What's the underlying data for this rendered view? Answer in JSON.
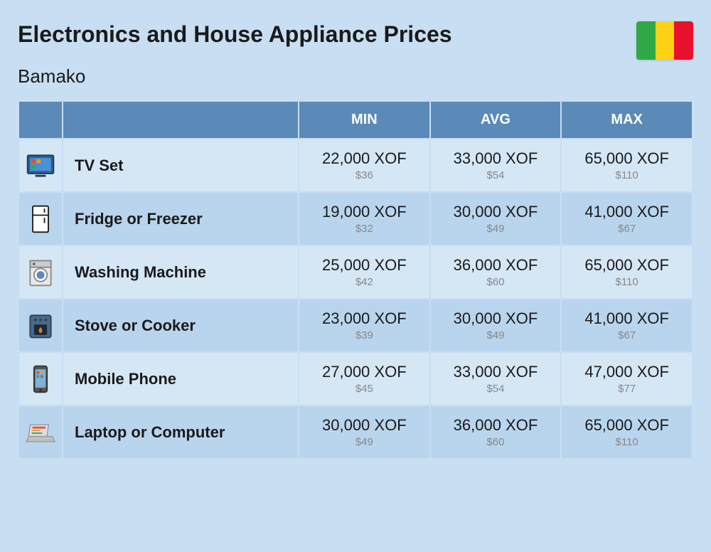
{
  "header": {
    "title": "Electronics and House Appliance Prices",
    "subtitle": "Bamako",
    "flag_colors": [
      "#2fa845",
      "#fcd116",
      "#e8112d"
    ]
  },
  "columns": {
    "min": "MIN",
    "avg": "AVG",
    "max": "MAX"
  },
  "styling": {
    "background_color": "#c8dff3",
    "header_bg": "#5b8ab8",
    "header_text": "#ffffff",
    "row_even_bg": "#d5e6f5",
    "row_odd_bg": "#b9d4ed",
    "title_fontsize": 32,
    "subtitle_fontsize": 26,
    "price_main_fontsize": 22,
    "price_sub_fontsize": 15,
    "price_sub_color": "#888888"
  },
  "rows": [
    {
      "icon": "tv-icon",
      "name": "TV Set",
      "min": {
        "xof": "22,000 XOF",
        "usd": "$36"
      },
      "avg": {
        "xof": "33,000 XOF",
        "usd": "$54"
      },
      "max": {
        "xof": "65,000 XOF",
        "usd": "$110"
      }
    },
    {
      "icon": "fridge-icon",
      "name": "Fridge or Freezer",
      "min": {
        "xof": "19,000 XOF",
        "usd": "$32"
      },
      "avg": {
        "xof": "30,000 XOF",
        "usd": "$49"
      },
      "max": {
        "xof": "41,000 XOF",
        "usd": "$67"
      }
    },
    {
      "icon": "washer-icon",
      "name": "Washing Machine",
      "min": {
        "xof": "25,000 XOF",
        "usd": "$42"
      },
      "avg": {
        "xof": "36,000 XOF",
        "usd": "$60"
      },
      "max": {
        "xof": "65,000 XOF",
        "usd": "$110"
      }
    },
    {
      "icon": "stove-icon",
      "name": "Stove or Cooker",
      "min": {
        "xof": "23,000 XOF",
        "usd": "$39"
      },
      "avg": {
        "xof": "30,000 XOF",
        "usd": "$49"
      },
      "max": {
        "xof": "41,000 XOF",
        "usd": "$67"
      }
    },
    {
      "icon": "phone-icon",
      "name": "Mobile Phone",
      "min": {
        "xof": "27,000 XOF",
        "usd": "$45"
      },
      "avg": {
        "xof": "33,000 XOF",
        "usd": "$54"
      },
      "max": {
        "xof": "47,000 XOF",
        "usd": "$77"
      }
    },
    {
      "icon": "laptop-icon",
      "name": "Laptop or Computer",
      "min": {
        "xof": "30,000 XOF",
        "usd": "$49"
      },
      "avg": {
        "xof": "36,000 XOF",
        "usd": "$60"
      },
      "max": {
        "xof": "65,000 XOF",
        "usd": "$110"
      }
    }
  ]
}
